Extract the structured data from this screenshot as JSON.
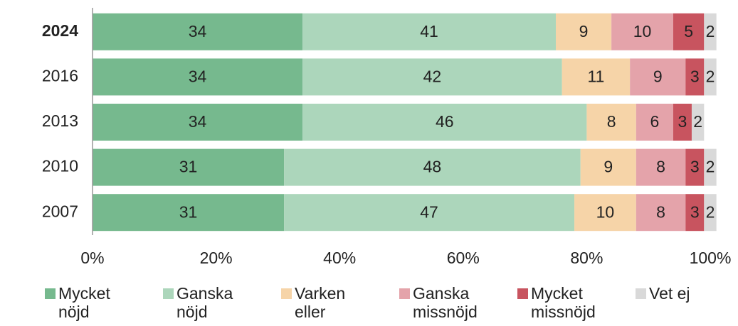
{
  "chart_data": {
    "type": "stacked_barh",
    "categories": [
      "2024",
      "2016",
      "2013",
      "2010",
      "2007"
    ],
    "series": [
      {
        "name": "Mycket nöjd",
        "color": "#76b98e",
        "values": [
          34,
          34,
          34,
          31,
          31
        ]
      },
      {
        "name": "Ganska nöjd",
        "color": "#acd6bb",
        "values": [
          41,
          42,
          46,
          48,
          47
        ]
      },
      {
        "name": "Varken eller",
        "color": "#f6d4a8",
        "values": [
          9,
          11,
          8,
          9,
          10
        ]
      },
      {
        "name": "Ganska missnöjd",
        "color": "#e4a3aa",
        "values": [
          10,
          9,
          6,
          8,
          8
        ]
      },
      {
        "name": "Mycket missnöjd",
        "color": "#c8545f",
        "values": [
          5,
          3,
          3,
          3,
          3
        ]
      },
      {
        "name": "Vet ej",
        "color": "#d9d9d9",
        "values": [
          2,
          2,
          2,
          2,
          2
        ]
      }
    ],
    "xlim": [
      0,
      100
    ],
    "xticks": [
      {
        "value": 0,
        "label": "0%"
      },
      {
        "value": 20,
        "label": "20%"
      },
      {
        "value": 40,
        "label": "40%"
      },
      {
        "value": 60,
        "label": "60%"
      },
      {
        "value": 80,
        "label": "80%"
      },
      {
        "value": 100,
        "label": "100%"
      }
    ],
    "legend": "bottom"
  }
}
